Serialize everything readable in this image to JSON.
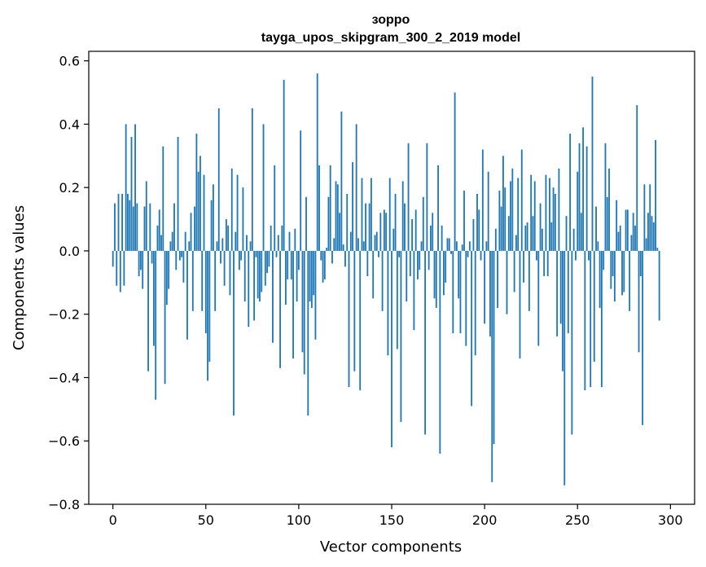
{
  "chart_data": {
    "type": "bar",
    "title": "зорро",
    "subtitle": "tayga_upos_skipgram_300_2_2019 model",
    "xlabel": "Vector components",
    "ylabel": "Components values",
    "xlim": [
      -13,
      313
    ],
    "ylim": [
      -0.8,
      0.63
    ],
    "xticks": [
      0,
      50,
      100,
      150,
      200,
      250,
      300
    ],
    "xtick_labels": [
      "0",
      "50",
      "100",
      "150",
      "200",
      "250",
      "300"
    ],
    "yticks": [
      -0.8,
      -0.6,
      -0.4,
      -0.2,
      0.0,
      0.2,
      0.4,
      0.6
    ],
    "ytick_labels": [
      "−0.8",
      "−0.6",
      "−0.4",
      "−0.2",
      "0.0",
      "0.2",
      "0.4",
      "0.6"
    ],
    "bar_color": "#1f77b4",
    "grid": false,
    "values": [
      -0.05,
      0.15,
      -0.11,
      0.18,
      -0.13,
      0.18,
      -0.11,
      0.4,
      0.18,
      0.16,
      0.36,
      0.14,
      0.4,
      0.15,
      -0.08,
      -0.06,
      -0.12,
      0.14,
      0.22,
      -0.38,
      0.15,
      -0.04,
      -0.3,
      -0.47,
      0.08,
      0.13,
      0.05,
      0.33,
      -0.42,
      -0.17,
      -0.12,
      0.03,
      0.06,
      0.15,
      -0.06,
      0.36,
      -0.03,
      -0.02,
      -0.1,
      0.06,
      -0.28,
      0.03,
      0.12,
      -0.19,
      0.14,
      0.37,
      0.25,
      0.3,
      -0.19,
      0.24,
      -0.26,
      -0.41,
      -0.35,
      0.16,
      0.21,
      -0.19,
      0.03,
      0.45,
      -0.04,
      0.04,
      -0.11,
      0.1,
      0.08,
      -0.14,
      0.26,
      -0.52,
      0.06,
      0.24,
      -0.06,
      -0.03,
      0.2,
      -0.16,
      0.05,
      -0.24,
      0.03,
      0.45,
      -0.22,
      -0.02,
      -0.15,
      -0.16,
      -0.13,
      0.4,
      -0.11,
      -0.07,
      -0.05,
      0.08,
      -0.29,
      0.27,
      -0.02,
      0.05,
      -0.37,
      0.08,
      0.54,
      -0.17,
      -0.09,
      0.06,
      -0.09,
      -0.34,
      0.07,
      -0.16,
      -0.06,
      0.38,
      -0.32,
      -0.39,
      0.17,
      -0.52,
      -0.16,
      -0.18,
      -0.14,
      -0.28,
      0.56,
      0.27,
      -0.03,
      -0.1,
      -0.09,
      0.01,
      0.17,
      0.27,
      -0.04,
      0.04,
      0.22,
      0.21,
      0.12,
      0.44,
      0.02,
      -0.05,
      0.18,
      -0.43,
      0.06,
      0.28,
      -0.38,
      0.4,
      0.04,
      -0.44,
      0.23,
      0.03,
      0.15,
      -0.08,
      0.15,
      0.23,
      -0.15,
      0.05,
      0.06,
      -0.02,
      0.12,
      -0.19,
      0.13,
      0.12,
      -0.33,
      0.23,
      -0.62,
      0.07,
      0.18,
      -0.31,
      -0.02,
      -0.54,
      0.22,
      0.15,
      -0.16,
      0.34,
      -0.08,
      0.1,
      -0.25,
      0.13,
      -0.09,
      -0.06,
      0.03,
      0.17,
      -0.58,
      0.34,
      -0.06,
      0.08,
      0.12,
      -0.15,
      -0.18,
      0.27,
      -0.64,
      0.08,
      -0.14,
      -0.1,
      0.04,
      0.04,
      -0.01,
      -0.26,
      0.5,
      0.03,
      -0.15,
      -0.26,
      0.02,
      0.19,
      -0.3,
      -0.02,
      0.03,
      -0.49,
      0.1,
      -0.33,
      0.18,
      0.13,
      -0.03,
      0.32,
      -0.23,
      0.03,
      0.25,
      -0.27,
      -0.73,
      -0.61,
      0.07,
      -0.18,
      0.19,
      0.14,
      0.3,
      0.2,
      -0.2,
      0.11,
      0.22,
      0.26,
      -0.13,
      0.05,
      0.23,
      -0.34,
      0.32,
      -0.1,
      0.08,
      0.09,
      -0.19,
      0.24,
      0.11,
      0.22,
      -0.03,
      -0.3,
      0.15,
      0.07,
      -0.08,
      0.24,
      -0.08,
      0.23,
      0.09,
      0.2,
      0.18,
      -0.27,
      0.26,
      -0.23,
      -0.38,
      -0.74,
      0.11,
      -0.26,
      0.37,
      -0.58,
      0.07,
      -0.03,
      0.25,
      0.34,
      0.12,
      0.39,
      -0.44,
      0.33,
      -0.03,
      -0.43,
      0.55,
      -0.35,
      0.14,
      0.03,
      -0.18,
      -0.43,
      -0.06,
      0.34,
      0.17,
      0.26,
      -0.12,
      -0.08,
      -0.16,
      0.16,
      0.06,
      0.08,
      -0.14,
      -0.13,
      0.13,
      0.13,
      -0.19,
      0.05,
      0.12,
      0.08,
      0.46,
      -0.32,
      -0.08,
      -0.55,
      0.21,
      0.04,
      0.12,
      0.21,
      0.11,
      0.09,
      0.35,
      0.01,
      -0.22
    ]
  }
}
